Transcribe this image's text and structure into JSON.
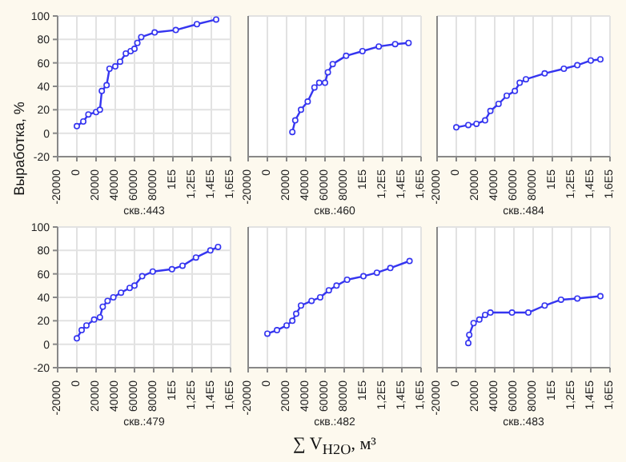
{
  "chart_data": [
    {
      "type": "line",
      "title": "скв.:443",
      "ylabel": "Выработка, %",
      "marker": "circle",
      "grid": true,
      "xlim": [
        -20000,
        160000
      ],
      "xticks": [
        -20000,
        0,
        20000,
        40000,
        60000,
        80000,
        {
          "value": 100000,
          "label": "1E5"
        },
        {
          "value": 120000,
          "label": "1,2E5"
        },
        {
          "value": 140000,
          "label": "1,4E5"
        },
        {
          "value": 160000,
          "label": "1,6E5"
        }
      ],
      "ylim": [
        -20,
        100
      ],
      "yticks": [
        -20,
        0,
        20,
        40,
        60,
        80,
        100
      ],
      "x": [
        0,
        6700,
        12000,
        20000,
        24000,
        26000,
        31000,
        34000,
        40000,
        45000,
        51000,
        56000,
        60000,
        63000,
        67000,
        81000,
        103000,
        125000,
        145000
      ],
      "series": [
        {
          "color": "#3535f0",
          "values": [
            6,
            10,
            16,
            18,
            20,
            36,
            41,
            55,
            57,
            61,
            68,
            70,
            72,
            77,
            82,
            86,
            88,
            93,
            97
          ]
        }
      ]
    },
    {
      "type": "line",
      "title": "скв.:460",
      "marker": "circle",
      "grid": true,
      "tick_labels": "x",
      "xlim": [
        -20000,
        160000
      ],
      "xticks": [
        -20000,
        0,
        20000,
        40000,
        60000,
        80000,
        {
          "value": 100000,
          "label": "1E5"
        },
        {
          "value": 120000,
          "label": "1,2E5"
        },
        {
          "value": 140000,
          "label": "1,4E5"
        },
        {
          "value": 160000,
          "label": "1,6E5"
        }
      ],
      "ylim": [
        -20,
        100
      ],
      "yticks": [
        -20,
        0,
        20,
        40,
        60,
        80,
        100
      ],
      "x": [
        26000,
        29000,
        35000,
        42000,
        49000,
        54000,
        60000,
        63000,
        68000,
        82000,
        99000,
        116000,
        133000,
        147000
      ],
      "series": [
        {
          "color": "#3535f0",
          "values": [
            1,
            11,
            20,
            27,
            39,
            43,
            43,
            52,
            59,
            66,
            70,
            74,
            76,
            77
          ]
        }
      ]
    },
    {
      "type": "line",
      "title": "скв.:484",
      "marker": "circle",
      "grid": true,
      "tick_labels": "x",
      "xlim": [
        -20000,
        160000
      ],
      "xticks": [
        -20000,
        0,
        20000,
        40000,
        60000,
        80000,
        {
          "value": 100000,
          "label": "1E5"
        },
        {
          "value": 120000,
          "label": "1,2E5"
        },
        {
          "value": 140000,
          "label": "1,4E5"
        },
        {
          "value": 160000,
          "label": "1,6E5"
        }
      ],
      "ylim": [
        -20,
        100
      ],
      "yticks": [
        -20,
        0,
        20,
        40,
        60,
        80,
        100
      ],
      "x": [
        0,
        12500,
        21000,
        30000,
        35500,
        44000,
        52500,
        61000,
        66000,
        72500,
        92000,
        112000,
        126000,
        140000,
        150000
      ],
      "series": [
        {
          "color": "#3535f0",
          "values": [
            5,
            7,
            8,
            11,
            19,
            25,
            32,
            36,
            43,
            46,
            51,
            55,
            58,
            62,
            63
          ]
        }
      ]
    },
    {
      "type": "line",
      "title": "скв.:479",
      "marker": "circle",
      "grid": true,
      "xlim": [
        -20000,
        160000
      ],
      "xticks": [
        -20000,
        0,
        20000,
        40000,
        60000,
        80000,
        {
          "value": 100000,
          "label": "1E5"
        },
        {
          "value": 120000,
          "label": "1,2E5"
        },
        {
          "value": 140000,
          "label": "1,4E5"
        },
        {
          "value": 160000,
          "label": "1,6E5"
        }
      ],
      "ylim": [
        -20,
        100
      ],
      "yticks": [
        -20,
        0,
        20,
        40,
        60,
        80,
        100
      ],
      "x": [
        0,
        5000,
        10000,
        18000,
        24000,
        27000,
        32000,
        38000,
        46000,
        55000,
        60000,
        68000,
        79000,
        99000,
        110000,
        124000,
        139000,
        147000
      ],
      "series": [
        {
          "color": "#3535f0",
          "values": [
            5,
            12,
            16,
            21,
            23,
            32,
            37,
            40,
            44,
            48,
            50,
            58,
            62,
            64,
            67,
            74,
            80,
            83
          ]
        }
      ]
    },
    {
      "type": "line",
      "title": "скв.:482",
      "xlabel": "∑ V$_{H2O}$, м³",
      "marker": "circle",
      "grid": true,
      "tick_labels": "x",
      "xlim": [
        -20000,
        160000
      ],
      "xticks": [
        -20000,
        0,
        20000,
        40000,
        60000,
        80000,
        {
          "value": 100000,
          "label": "1E5"
        },
        {
          "value": 120000,
          "label": "1,2E5"
        },
        {
          "value": 140000,
          "label": "1,4E5"
        },
        {
          "value": 160000,
          "label": "1,6E5"
        }
      ],
      "ylim": [
        -20,
        100
      ],
      "yticks": [
        -20,
        0,
        20,
        40,
        60,
        80,
        100
      ],
      "x": [
        0,
        10000,
        20000,
        26000,
        30000,
        35000,
        46000,
        55000,
        64000,
        72000,
        83000,
        100000,
        114000,
        128000,
        148000
      ],
      "series": [
        {
          "color": "#3535f0",
          "values": [
            9,
            12,
            16,
            20,
            26,
            33,
            37,
            40,
            46,
            50,
            55,
            58,
            61,
            65,
            71
          ]
        }
      ]
    },
    {
      "type": "line",
      "title": "скв.:483",
      "marker": "circle",
      "grid": true,
      "tick_labels": "x",
      "xlim": [
        -20000,
        160000
      ],
      "xticks": [
        -20000,
        0,
        20000,
        40000,
        60000,
        80000,
        {
          "value": 100000,
          "label": "1E5"
        },
        {
          "value": 120000,
          "label": "1,2E5"
        },
        {
          "value": 140000,
          "label": "1,4E5"
        },
        {
          "value": 160000,
          "label": "1,6E5"
        }
      ],
      "ylim": [
        -20,
        100
      ],
      "yticks": [
        -20,
        0,
        20,
        40,
        60,
        80,
        100
      ],
      "x": [
        12500,
        13500,
        18000,
        24000,
        30000,
        35500,
        58000,
        75000,
        92000,
        109000,
        126000,
        150000
      ],
      "series": [
        {
          "color": "#3535f0",
          "values": [
            1,
            8,
            18,
            21,
            25,
            27,
            27,
            27,
            33,
            38,
            39,
            41
          ]
        }
      ]
    }
  ]
}
